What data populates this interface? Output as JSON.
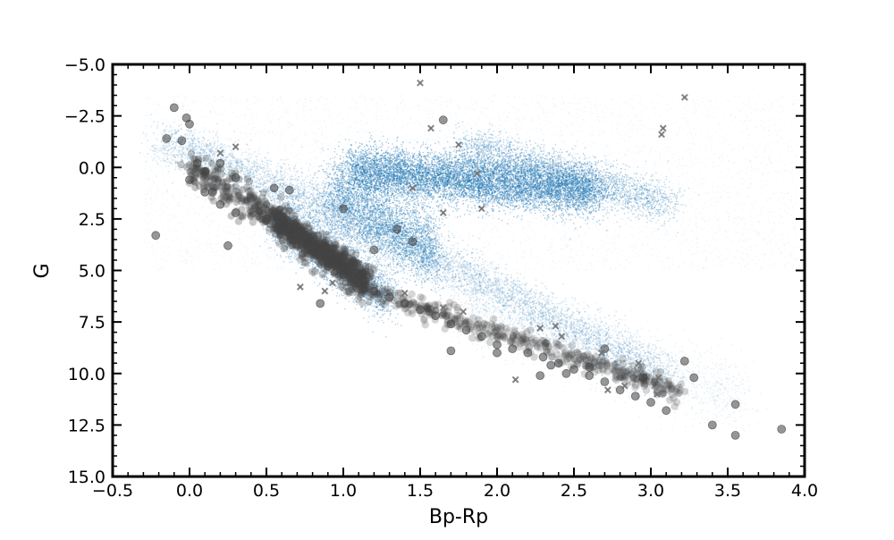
{
  "chart_data": {
    "type": "scatter",
    "title": "",
    "xlabel": "Bp-Rp",
    "ylabel": "G",
    "xlim": [
      -0.5,
      4.0
    ],
    "ylim": [
      15.0,
      -5.0
    ],
    "y_inverted": true,
    "grid": false,
    "x_ticks": [
      -0.5,
      0.0,
      0.5,
      1.0,
      1.5,
      2.0,
      2.5,
      3.0,
      3.5,
      4.0
    ],
    "x_tick_labels": [
      "−0.5",
      "0.0",
      "0.5",
      "1.0",
      "1.5",
      "2.0",
      "2.5",
      "3.0",
      "3.5",
      "4.0"
    ],
    "y_ticks": [
      -5.0,
      -2.5,
      0.0,
      2.5,
      5.0,
      7.5,
      10.0,
      12.5,
      15.0
    ],
    "y_tick_labels": [
      "−5.0",
      "−2.5",
      "0.0",
      "2.5",
      "5.0",
      "7.5",
      "10.0",
      "12.5",
      "15.0"
    ],
    "colors": {
      "background_density": "#1f77b4",
      "circle_markers": "#404040",
      "cross_markers": "#707070"
    },
    "series": [
      {
        "kind": "density",
        "marker": "dot",
        "color": "#1f77b4",
        "description_points": [
          [
            -0.1,
            -1.5
          ],
          [
            0.1,
            0.5
          ],
          [
            0.3,
            2.0
          ],
          [
            0.5,
            3.0
          ],
          [
            0.7,
            4.0
          ],
          [
            0.9,
            5.0
          ],
          [
            1.1,
            5.8
          ],
          [
            1.3,
            6.5
          ],
          [
            1.6,
            7.3
          ],
          [
            2.0,
            8.3
          ],
          [
            2.5,
            9.6
          ],
          [
            3.0,
            11.0
          ],
          [
            1.0,
            1.5
          ],
          [
            1.2,
            0.8
          ],
          [
            1.5,
            0.5
          ],
          [
            1.8,
            0.5
          ],
          [
            2.1,
            1.0
          ],
          [
            2.4,
            1.6
          ],
          [
            2.7,
            2.3
          ],
          [
            1.1,
            3.5
          ],
          [
            1.3,
            4.5
          ],
          [
            1.6,
            5.0
          ]
        ]
      },
      {
        "kind": "circles",
        "marker": "o",
        "color": "#404040",
        "points": [
          [
            -0.1,
            -2.9
          ],
          [
            -0.02,
            -2.4
          ],
          [
            -0.15,
            -1.4
          ],
          [
            0.0,
            -2.1
          ],
          [
            -0.05,
            -1.3
          ],
          [
            0.05,
            -0.2
          ],
          [
            -0.22,
            3.3
          ],
          [
            0.25,
            3.8
          ],
          [
            0.1,
            0.2
          ],
          [
            0.2,
            -0.2
          ],
          [
            0.15,
            1.2
          ],
          [
            0.3,
            0.5
          ],
          [
            0.0,
            0.6
          ],
          [
            0.1,
            1.2
          ],
          [
            0.2,
            1.8
          ],
          [
            0.3,
            2.2
          ],
          [
            0.4,
            1.5
          ],
          [
            0.5,
            2.5
          ],
          [
            0.6,
            2.8
          ],
          [
            0.7,
            3.5
          ],
          [
            0.8,
            4.0
          ],
          [
            0.9,
            4.8
          ],
          [
            1.0,
            5.2
          ],
          [
            1.1,
            5.6
          ],
          [
            1.2,
            6.0
          ],
          [
            1.3,
            6.3
          ],
          [
            1.4,
            6.6
          ],
          [
            1.5,
            6.9
          ],
          [
            1.6,
            7.2
          ],
          [
            1.7,
            7.6
          ],
          [
            1.8,
            7.9
          ],
          [
            1.9,
            8.2
          ],
          [
            2.0,
            8.6
          ],
          [
            2.1,
            8.8
          ],
          [
            2.2,
            9.0
          ],
          [
            2.3,
            9.2
          ],
          [
            2.4,
            9.5
          ],
          [
            2.5,
            9.8
          ],
          [
            2.6,
            10.1
          ],
          [
            2.7,
            10.4
          ],
          [
            2.8,
            10.8
          ],
          [
            2.9,
            11.1
          ],
          [
            3.0,
            11.4
          ],
          [
            3.1,
            11.8
          ],
          [
            1.65,
            -2.3
          ],
          [
            0.85,
            6.6
          ],
          [
            1.7,
            8.9
          ],
          [
            2.0,
            9.0
          ],
          [
            2.28,
            10.1
          ],
          [
            2.7,
            8.8
          ],
          [
            2.95,
            10.2
          ],
          [
            3.22,
            9.4
          ],
          [
            3.28,
            10.2
          ],
          [
            3.4,
            12.5
          ],
          [
            3.55,
            11.5
          ],
          [
            3.55,
            13.0
          ],
          [
            3.85,
            12.7
          ],
          [
            1.45,
            3.6
          ],
          [
            1.2,
            4.0
          ],
          [
            1.0,
            2.0
          ],
          [
            0.55,
            1.0
          ],
          [
            0.65,
            1.1
          ],
          [
            1.35,
            3.0
          ],
          [
            2.35,
            9.6
          ],
          [
            2.45,
            10.0
          ],
          [
            2.6,
            9.7
          ]
        ]
      },
      {
        "kind": "crosses",
        "marker": "x",
        "color": "#707070",
        "points": [
          [
            1.5,
            -4.1
          ],
          [
            1.57,
            -1.9
          ],
          [
            1.75,
            -1.1
          ],
          [
            0.3,
            -1.0
          ],
          [
            0.2,
            -0.7
          ],
          [
            1.87,
            0.3
          ],
          [
            3.22,
            -3.4
          ],
          [
            3.08,
            -1.9
          ],
          [
            3.07,
            -1.6
          ],
          [
            1.9,
            2.0
          ],
          [
            1.65,
            2.2
          ],
          [
            1.45,
            1.0
          ],
          [
            0.72,
            5.8
          ],
          [
            0.93,
            5.6
          ],
          [
            1.4,
            6.1
          ],
          [
            1.65,
            6.8
          ],
          [
            1.78,
            7.0
          ],
          [
            2.28,
            7.8
          ],
          [
            2.38,
            7.7
          ],
          [
            2.42,
            8.2
          ],
          [
            2.12,
            10.3
          ],
          [
            2.55,
            9.3
          ],
          [
            2.68,
            9.0
          ],
          [
            2.8,
            9.9
          ],
          [
            2.92,
            9.5
          ],
          [
            3.05,
            10.2
          ],
          [
            3.04,
            11.0
          ],
          [
            2.83,
            10.6
          ],
          [
            2.72,
            10.8
          ],
          [
            0.88,
            6.0
          ]
        ]
      }
    ]
  }
}
